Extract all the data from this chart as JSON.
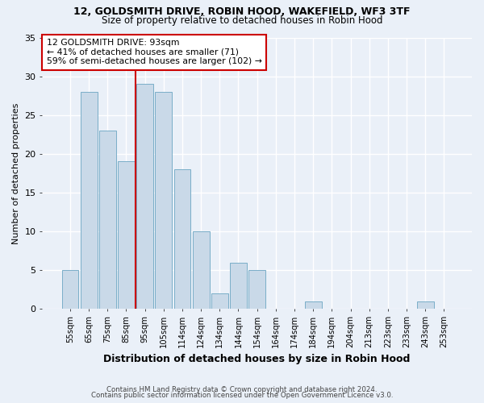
{
  "title_line1": "12, GOLDSMITH DRIVE, ROBIN HOOD, WAKEFIELD, WF3 3TF",
  "title_line2": "Size of property relative to detached houses in Robin Hood",
  "xlabel": "Distribution of detached houses by size in Robin Hood",
  "ylabel": "Number of detached properties",
  "categories": [
    "55sqm",
    "65sqm",
    "75sqm",
    "85sqm",
    "95sqm",
    "105sqm",
    "114sqm",
    "124sqm",
    "134sqm",
    "144sqm",
    "154sqm",
    "164sqm",
    "174sqm",
    "184sqm",
    "194sqm",
    "204sqm",
    "213sqm",
    "223sqm",
    "233sqm",
    "243sqm",
    "253sqm"
  ],
  "values": [
    5,
    28,
    23,
    19,
    29,
    28,
    18,
    10,
    2,
    6,
    5,
    0,
    0,
    1,
    0,
    0,
    0,
    0,
    0,
    1,
    0
  ],
  "bar_color": "#c9d9e8",
  "bar_edge_color": "#7aaec8",
  "vline_x": 3.5,
  "vline_color": "#cc0000",
  "annotation_text": "12 GOLDSMITH DRIVE: 93sqm\n← 41% of detached houses are smaller (71)\n59% of semi-detached houses are larger (102) →",
  "annotation_box_color": "#ffffff",
  "annotation_box_edge_color": "#cc0000",
  "ylim": [
    0,
    35
  ],
  "yticks": [
    0,
    5,
    10,
    15,
    20,
    25,
    30,
    35
  ],
  "background_color": "#eaf0f8",
  "grid_color": "#ffffff",
  "footer_line1": "Contains HM Land Registry data © Crown copyright and database right 2024.",
  "footer_line2": "Contains public sector information licensed under the Open Government Licence v3.0."
}
